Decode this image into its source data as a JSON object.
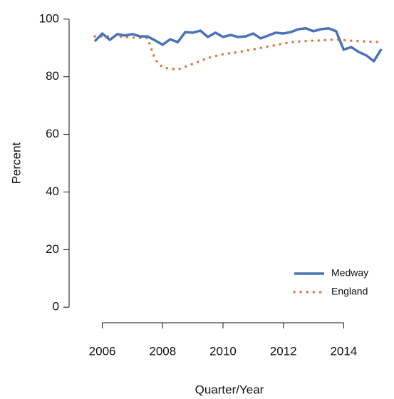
{
  "chart_data": {
    "type": "line",
    "x_label": "Quarter/Year",
    "y_label": "Percent",
    "x": [
      2005.75,
      2006,
      2006.25,
      2006.5,
      2006.75,
      2007,
      2007.25,
      2007.5,
      2007.75,
      2008,
      2008.25,
      2008.5,
      2008.75,
      2009,
      2009.25,
      2009.5,
      2009.75,
      2010,
      2010.25,
      2010.5,
      2010.75,
      2011,
      2011.25,
      2011.5,
      2011.75,
      2012,
      2012.25,
      2012.5,
      2012.75,
      2013,
      2013.25,
      2013.5,
      2013.75,
      2014,
      2014.25,
      2014.5,
      2014.75,
      2015,
      2015.25
    ],
    "series": [
      {
        "name": "Medway",
        "color": "#4a72b8",
        "style": "solid",
        "values": [
          92.3,
          95,
          92.8,
          94.8,
          94.3,
          94.8,
          94,
          94,
          92.6,
          91.1,
          93,
          92,
          95.5,
          95.3,
          96,
          93.8,
          95.3,
          93.8,
          94.5,
          93.8,
          94,
          95,
          93.3,
          94.3,
          95.3,
          95,
          95.5,
          96.5,
          96.8,
          95.8,
          96.5,
          96.8,
          95.8,
          89.4,
          90.3,
          88.6,
          87.4,
          85.4,
          89.6
        ]
      },
      {
        "name": "England",
        "color": "#e07b40",
        "style": "dotted",
        "values": [
          94,
          94,
          94,
          94,
          93.8,
          93.6,
          93.5,
          93.4,
          86,
          83.2,
          82.8,
          82.5,
          83.5,
          84.5,
          85.5,
          86.5,
          87.2,
          87.8,
          88.2,
          88.5,
          89,
          89.5,
          90,
          90.5,
          91,
          91.5,
          92,
          92.2,
          92.4,
          92.5,
          92.6,
          92.8,
          92.9,
          92.7,
          92.5,
          92.4,
          92.2,
          92.1,
          92
        ]
      }
    ],
    "xlim": [
      2004.9,
      2015.55
    ],
    "xticks": [
      2006,
      2008,
      2010,
      2012,
      2014
    ],
    "ylim": [
      -5.4,
      105.4
    ],
    "yticks": [
      0,
      20,
      40,
      60,
      80,
      100
    ],
    "legend": "bottom-right"
  }
}
